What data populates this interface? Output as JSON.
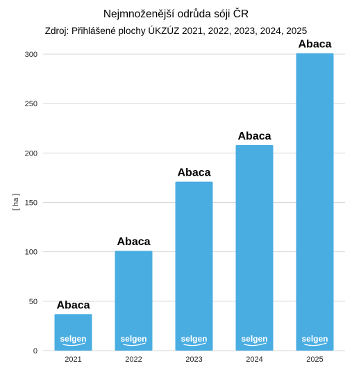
{
  "chart_data": {
    "type": "bar",
    "title": "Nejmnoženější odrůda sóji ČR",
    "subtitle": "Zdroj: Přihlášené plochy ÚKZÚZ 2021, 2022, 2023, 2024, 2025",
    "ylabel": "[ ha ]",
    "xlabel": "",
    "ylim": [
      0,
      300
    ],
    "yticks": [
      0,
      50,
      100,
      150,
      200,
      250,
      300
    ],
    "grid": true,
    "categories": [
      "2021",
      "2022",
      "2023",
      "2024",
      "2025"
    ],
    "values": [
      37,
      101,
      171,
      208,
      301
    ],
    "bar_labels": [
      "Abaca",
      "Abaca",
      "Abaca",
      "Abaca",
      "Abaca"
    ],
    "bar_logo": "selgen",
    "bar_color": "#4aade1",
    "grid_color": "#d6d6d6"
  }
}
